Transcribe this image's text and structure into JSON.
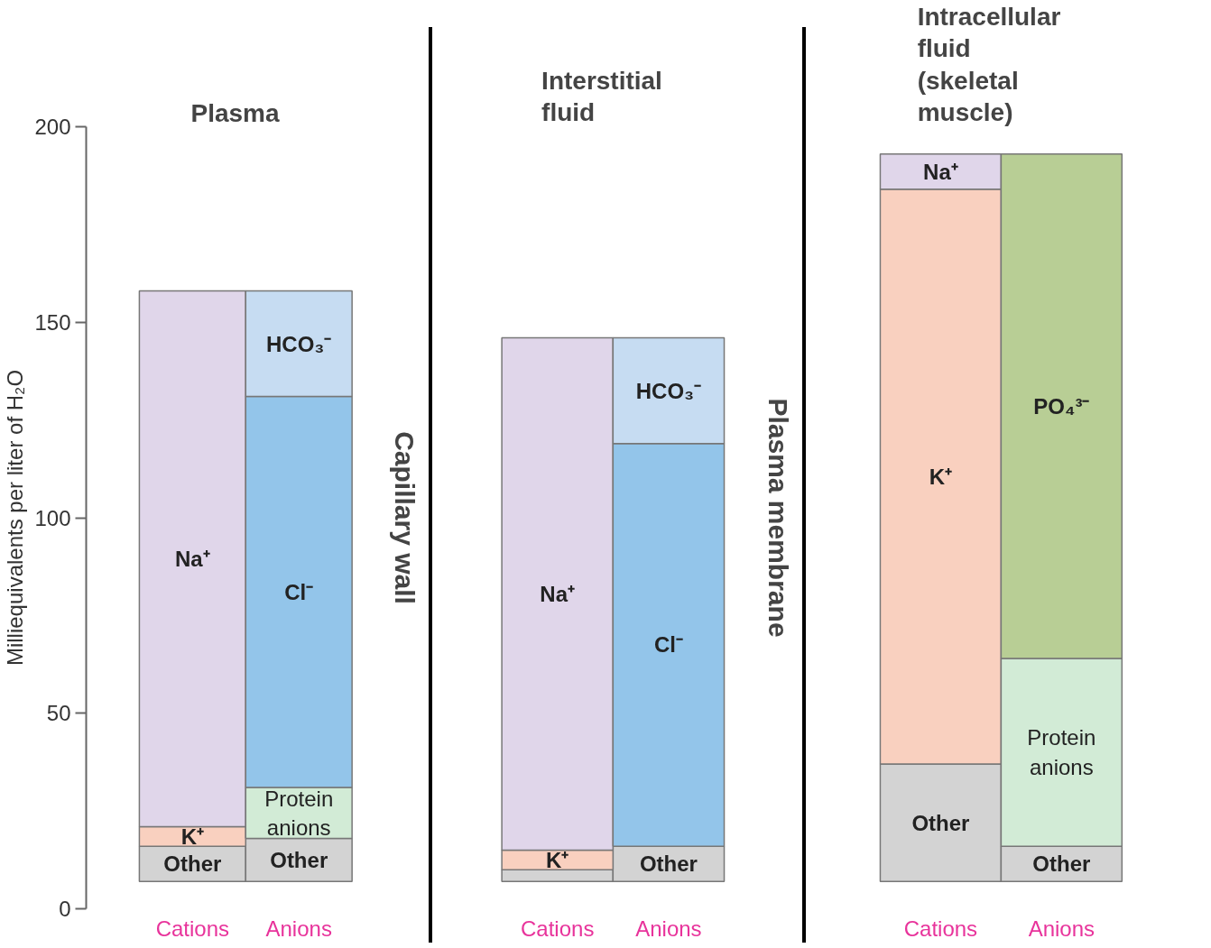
{
  "chart_data": [
    {
      "type": "bar",
      "title": "Plasma",
      "ylabel": "Milliequivalents per liter of H₂O",
      "categories": [
        "Cations",
        "Anions"
      ],
      "ylim": [
        0,
        200
      ],
      "yticks": [
        0,
        50,
        100,
        150,
        200
      ],
      "grid": false,
      "legend": false,
      "annotations": [
        "Capillary wall"
      ],
      "series": [
        {
          "name": "Other",
          "color": "#d3d3d3",
          "base": [
            7,
            7
          ],
          "values": [
            9,
            11
          ]
        },
        {
          "name": "K⁺",
          "color": "#f9d0bf",
          "base": [
            16,
            null
          ],
          "values": [
            5,
            null
          ]
        },
        {
          "name": "Na⁺",
          "color": "#e0d6ea",
          "base": [
            21,
            null
          ],
          "values": [
            137,
            null
          ]
        },
        {
          "name": "Protein anions",
          "color": "#d2ebd6",
          "base": [
            null,
            18
          ],
          "values": [
            null,
            13
          ]
        },
        {
          "name": "Cl⁻",
          "color": "#93c5ea",
          "base": [
            null,
            31
          ],
          "values": [
            null,
            100
          ]
        },
        {
          "name": "HCO₃⁻",
          "color": "#c6dcf2",
          "base": [
            null,
            131
          ],
          "values": [
            null,
            27
          ]
        }
      ]
    },
    {
      "type": "bar",
      "title": "Interstitial fluid",
      "categories": [
        "Cations",
        "Anions"
      ],
      "ylim": [
        0,
        200
      ],
      "yticks": [
        0,
        50,
        100,
        150,
        200
      ],
      "tick_labels": "x",
      "grid": false,
      "legend": false,
      "annotations": [
        "Plasma membrane"
      ],
      "series": [
        {
          "color": "#d3d3d3",
          "base": [
            7,
            null
          ],
          "values": [
            3,
            null
          ]
        },
        {
          "name": "Other",
          "color": "#d3d3d3",
          "base": [
            null,
            7
          ],
          "values": [
            null,
            9
          ]
        },
        {
          "name": "K⁺",
          "color": "#f9d0bf",
          "base": [
            10,
            null
          ],
          "values": [
            5,
            null
          ]
        },
        {
          "name": "Na⁺",
          "color": "#e0d6ea",
          "base": [
            15,
            null
          ],
          "values": [
            131,
            null
          ]
        },
        {
          "name": "Cl⁻",
          "color": "#93c5ea",
          "base": [
            null,
            16
          ],
          "values": [
            null,
            103
          ]
        },
        {
          "name": "HCO₃⁻",
          "color": "#c6dcf2",
          "base": [
            null,
            119
          ],
          "values": [
            null,
            27
          ]
        }
      ]
    },
    {
      "type": "bar",
      "title": "Intracellular fluid (skeletal muscle)",
      "categories": [
        "Cations",
        "Anions"
      ],
      "ylim": [
        0,
        200
      ],
      "yticks": [
        0,
        50,
        100,
        150,
        200
      ],
      "tick_labels": "x",
      "grid": false,
      "legend": false,
      "series": [
        {
          "name": "Other",
          "color": "#d3d3d3",
          "base": [
            7,
            7
          ],
          "values": [
            30,
            9
          ]
        },
        {
          "name": "K⁺",
          "color": "#f9d0bf",
          "base": [
            37,
            null
          ],
          "values": [
            147,
            null
          ]
        },
        {
          "name": "Na⁺",
          "color": "#e0d6ea",
          "base": [
            184,
            null
          ],
          "values": [
            9,
            null
          ]
        },
        {
          "name": "Protein anions",
          "color": "#d2ebd6",
          "base": [
            null,
            16
          ],
          "values": [
            null,
            48
          ]
        },
        {
          "name": "PO₄³⁻",
          "color": "#b8ce95",
          "base": [
            null,
            64
          ],
          "values": [
            null,
            129
          ]
        }
      ]
    }
  ]
}
